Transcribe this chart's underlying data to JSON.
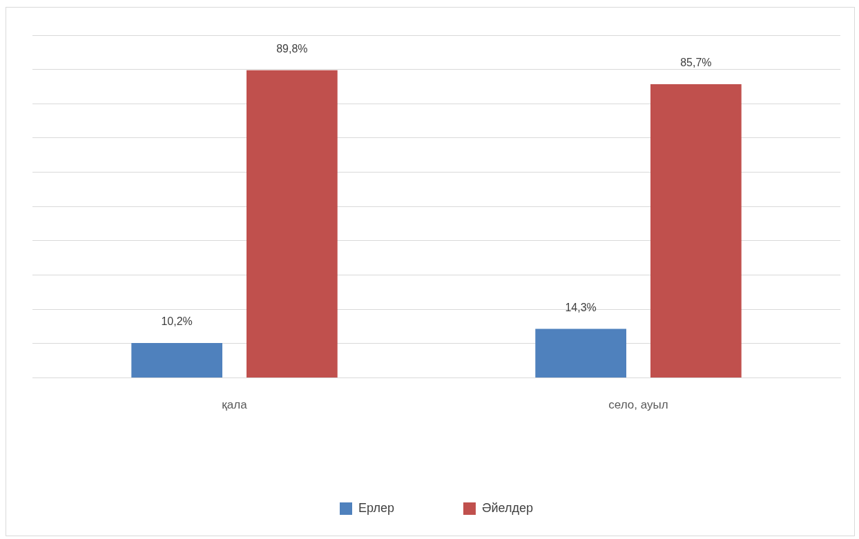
{
  "chart_data": {
    "type": "bar",
    "categories": [
      "қала",
      "село, ауыл"
    ],
    "series": [
      {
        "name": "Ерлер",
        "color": "#4f81bd",
        "values": [
          10.2,
          14.3
        ],
        "value_labels": [
          "10,2%",
          "14,3%"
        ]
      },
      {
        "name": "Әйелдер",
        "color": "#c0504d",
        "values": [
          89.8,
          85.7
        ],
        "value_labels": [
          "89,8%",
          "85,7%"
        ]
      }
    ],
    "ylim": [
      0,
      100
    ],
    "yticks": [
      {
        "value": 0,
        "label": null
      },
      {
        "value": 10,
        "label": null
      },
      {
        "value": 20,
        "label": null
      },
      {
        "value": 30,
        "label": null
      },
      {
        "value": 40,
        "label": null
      },
      {
        "value": 50,
        "label": null
      },
      {
        "value": 60,
        "label": null
      },
      {
        "value": 70,
        "label": null
      },
      {
        "value": 80,
        "label": null
      },
      {
        "value": 90,
        "label": null
      },
      {
        "value": 100,
        "label": null
      }
    ],
    "grid": "y",
    "legend": "bottom",
    "tick_labels": "x"
  }
}
